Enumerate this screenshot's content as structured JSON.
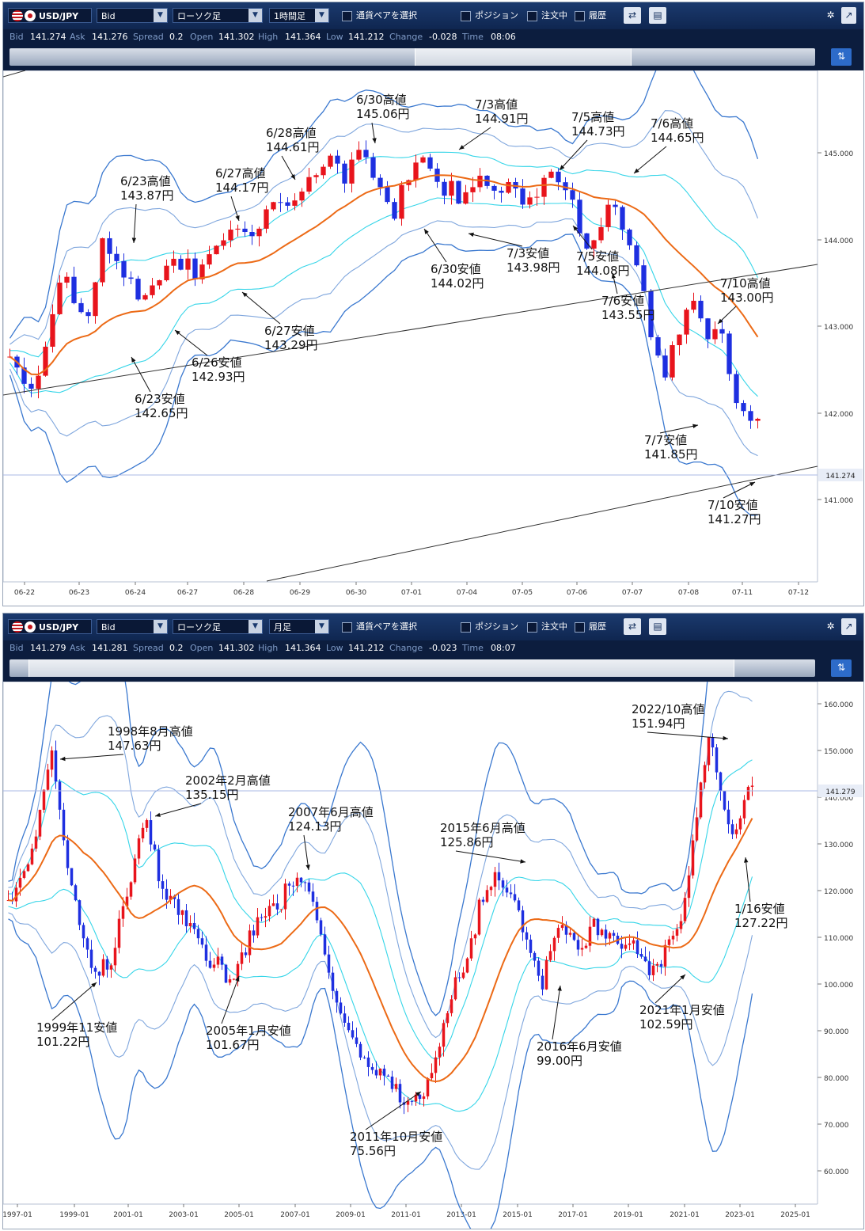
{
  "panels": [
    {
      "symbol": "USD/JPY",
      "price_type": "Bid",
      "chart_type": "ローソク足",
      "period": "1時間足",
      "pair_select": "通貨ペアを選択",
      "toggles": [
        "ポジション",
        "注文中",
        "履歴"
      ],
      "quote": {
        "bid_label": "Bid",
        "bid": "141.274",
        "ask_label": "Ask",
        "ask": "141.276",
        "spread_label": "Spread",
        "spread": "0.2",
        "open_label": "Open",
        "open": "141.302",
        "high_label": "High",
        "high": "141.364",
        "low_label": "Low",
        "low": "141.212",
        "change_label": "Change",
        "change": "-0.028",
        "time_label": "Time",
        "time": "08:06"
      }
    },
    {
      "symbol": "USD/JPY",
      "price_type": "Bid",
      "chart_type": "ローソク足",
      "period": "月足",
      "pair_select": "通貨ペアを選択",
      "toggles": [
        "ポジション",
        "注文中",
        "履歴"
      ],
      "quote": {
        "bid_label": "Bid",
        "bid": "141.279",
        "ask_label": "Ask",
        "ask": "141.281",
        "spread_label": "Spread",
        "spread": "0.2",
        "open_label": "Open",
        "open": "141.302",
        "high_label": "High",
        "high": "141.364",
        "low_label": "Low",
        "low": "141.212",
        "change_label": "Change",
        "change": "-0.023",
        "time_label": "Time",
        "time": "08:07"
      }
    }
  ],
  "colors": {
    "up": "#e8141c",
    "down": "#1e2fe0",
    "ma": "#ec6a16",
    "band_outer": "#3a78cf",
    "band_mid": "#7fa6dd",
    "band_inner": "#35d5e8",
    "trend": "#333333",
    "current": "#a9b8e6"
  },
  "chart_data": [
    {
      "type": "candlestick",
      "title": "USD/JPY 1時間足",
      "y_ticks": [
        "145.000",
        "144.000",
        "143.000",
        "142.000",
        "141.000"
      ],
      "ylim": [
        139.15,
        146.05
      ],
      "x_ticks": [
        "06-22",
        "06-23",
        "06-24",
        "06-27",
        "06-28",
        "06-29",
        "06-30",
        "07-01",
        "07-04",
        "07-05",
        "07-06",
        "07-07",
        "07-08",
        "07-11",
        "07-12"
      ],
      "current_price": "141.274",
      "path": [
        142.3,
        142.0,
        141.7,
        141.8,
        142.5,
        143.1,
        143.2,
        143.0,
        142.7,
        143.0,
        143.8,
        143.6,
        143.4,
        143.2,
        142.9,
        143.2,
        143.3,
        143.6,
        143.5,
        143.4,
        143.3,
        143.4,
        143.6,
        143.9,
        144.0,
        143.9,
        143.7,
        144.0,
        144.2,
        144.4,
        144.3,
        144.5,
        144.6,
        144.8,
        144.9,
        144.7,
        144.5,
        144.9,
        144.8,
        144.6,
        144.3,
        144.1,
        144.5,
        144.7,
        144.9,
        144.6,
        144.4,
        144.5,
        144.3,
        144.4,
        144.5,
        144.6,
        144.4,
        144.6,
        144.5,
        144.3,
        144.2,
        144.5,
        144.7,
        144.6,
        144.4,
        143.9,
        143.6,
        144.0,
        144.2,
        144.1,
        143.9,
        143.4,
        142.9,
        142.3,
        141.9,
        142.3,
        142.7,
        143.0,
        142.7,
        142.4,
        142.5,
        141.9,
        141.5,
        141.3,
        141.27
      ],
      "annotations": [
        {
          "date": "6/23高値",
          "price": "143.87円"
        },
        {
          "date": "6/27高値",
          "price": "144.17円"
        },
        {
          "date": "6/28高値",
          "price": "144.61円"
        },
        {
          "date": "6/30高値",
          "price": "145.06円"
        },
        {
          "date": "7/3高値",
          "price": "144.91円"
        },
        {
          "date": "7/5高値",
          "price": "144.73円"
        },
        {
          "date": "7/6高値",
          "price": "144.65円"
        },
        {
          "date": "7/10高値",
          "price": "143.00円"
        },
        {
          "date": "6/23安値",
          "price": "142.65円"
        },
        {
          "date": "6/26安値",
          "price": "142.93円"
        },
        {
          "date": "6/27安値",
          "price": "143.29円"
        },
        {
          "date": "6/30安値",
          "price": "144.02円"
        },
        {
          "date": "7/3安値",
          "price": "143.98円"
        },
        {
          "date": "7/5安値",
          "price": "144.08円"
        },
        {
          "date": "7/6安値",
          "price": "143.55円"
        },
        {
          "date": "7/7安値",
          "price": "141.85円"
        },
        {
          "date": "7/10安値",
          "price": "141.27円"
        }
      ]
    },
    {
      "type": "candlestick",
      "title": "USD/JPY 月足",
      "y_ticks": [
        "160.000",
        "150.000",
        "140.000",
        "130.000",
        "120.000",
        "110.000",
        "100.000",
        "90.000",
        "80.000",
        "70.000",
        "60.000"
      ],
      "ylim": [
        57.0,
        161.8
      ],
      "x_ticks": [
        "1997-01",
        "1999-01",
        "2001-01",
        "2003-01",
        "2005-01",
        "2007-01",
        "2009-01",
        "2011-01",
        "2013-01",
        "2015-01",
        "2017-01",
        "2019-01",
        "2021-01",
        "2023-01",
        "2025-01"
      ],
      "current_price": "141.279",
      "path": [
        117,
        121,
        125,
        131,
        140,
        147.6,
        135,
        121,
        114,
        107,
        102,
        105,
        107,
        117,
        123,
        131,
        133,
        124,
        119,
        118,
        115,
        112,
        109,
        105,
        106,
        102,
        104,
        108,
        112,
        114,
        119,
        117,
        121,
        123,
        120,
        116,
        108,
        100,
        95,
        90,
        89,
        85,
        83,
        82,
        80,
        78,
        76,
        78,
        81,
        86,
        96,
        102,
        105,
        110,
        118,
        122,
        123,
        121,
        118,
        112,
        106,
        101,
        110,
        113,
        112,
        109,
        110,
        113,
        112,
        111,
        110,
        109,
        107,
        104,
        103,
        108,
        111,
        114,
        125,
        140,
        150,
        145,
        134,
        131,
        138,
        141
      ],
      "annotations": [
        {
          "date": "1998年8月高値",
          "price": "147.63円"
        },
        {
          "date": "2002年2月高値",
          "price": "135.15円"
        },
        {
          "date": "2007年6月高値",
          "price": "124.13円"
        },
        {
          "date": "2015年6月高値",
          "price": "125.86円"
        },
        {
          "date": "2022/10高値",
          "price": "151.94円"
        },
        {
          "date": "1999年11安値",
          "price": "101.22円"
        },
        {
          "date": "2005年1月安値",
          "price": "101.67円"
        },
        {
          "date": "2011年10月安値",
          "price": "75.56円"
        },
        {
          "date": "2016年6月安値",
          "price": "99.00円"
        },
        {
          "date": "2021年1月安値",
          "price": "102.59円"
        },
        {
          "date": "1/16安値",
          "price": "127.22円"
        }
      ]
    }
  ]
}
